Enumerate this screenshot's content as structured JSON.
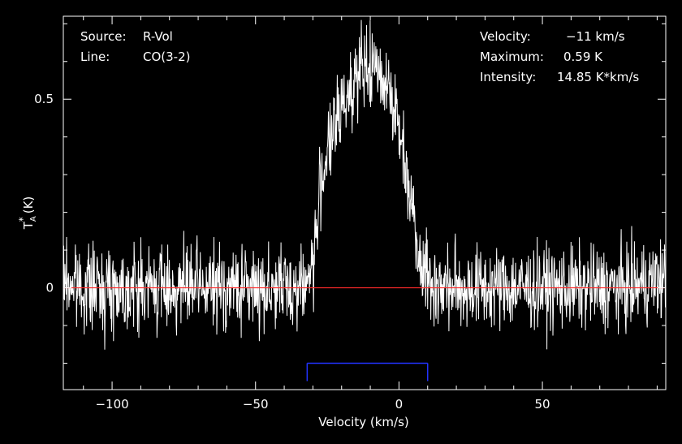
{
  "chart_data": {
    "type": "line",
    "xlabel": "Velocity (km/s)",
    "ylabel": "T",
    "ylabel_sub": "A",
    "ylabel_sup": "*",
    "ylabel_unit": "(K)",
    "xlim": [
      -117,
      93
    ],
    "ylim": [
      -0.27,
      0.72
    ],
    "xticks": [
      -100,
      -50,
      0,
      50
    ],
    "yticks": [
      0,
      0.5
    ],
    "ytick_labels": [
      "0",
      "0.5"
    ],
    "info_left": [
      {
        "key": "Source:",
        "value": "R-Vol"
      },
      {
        "key": "Line:",
        "value": "CO(3-2)"
      }
    ],
    "info_right": [
      {
        "key": "Velocity:",
        "value": "−11 km/s"
      },
      {
        "key": "Maximum:",
        "value": "0.59 K"
      },
      {
        "key": "Intensity:",
        "value": "14.85 K*km/s"
      }
    ],
    "spectrum": {
      "name": "",
      "color": "#ffffff",
      "x": [
        -117,
        -110,
        -100,
        -90,
        -80,
        -70,
        -60,
        -50,
        -40,
        -35,
        -31,
        -29,
        -27,
        -25,
        -23,
        -21,
        -19,
        -17,
        -15,
        -13,
        -11,
        -9,
        -7,
        -5,
        -3,
        -1,
        1,
        3,
        5,
        7,
        9,
        11,
        15,
        20,
        30,
        40,
        50,
        60,
        70,
        80,
        90,
        93
      ],
      "y": [
        0.02,
        0.0,
        0.0,
        0.0,
        0.0,
        0.0,
        0.0,
        0.0,
        0.0,
        0.0,
        0.03,
        0.12,
        0.3,
        0.36,
        0.4,
        0.45,
        0.5,
        0.53,
        0.56,
        0.57,
        0.58,
        0.58,
        0.57,
        0.56,
        0.53,
        0.45,
        0.38,
        0.3,
        0.2,
        0.1,
        0.05,
        0.01,
        0.0,
        0.0,
        0.0,
        0.0,
        0.0,
        0.0,
        0.0,
        0.0,
        0.02,
        0.02
      ],
      "noise_rms": 0.055
    },
    "baseline": {
      "y": 0,
      "color": "#ff2a2a"
    },
    "window": {
      "x": [
        -32,
        10
      ],
      "y": -0.2,
      "color": "#2233ff"
    },
    "frame_color": "#ffffff"
  }
}
